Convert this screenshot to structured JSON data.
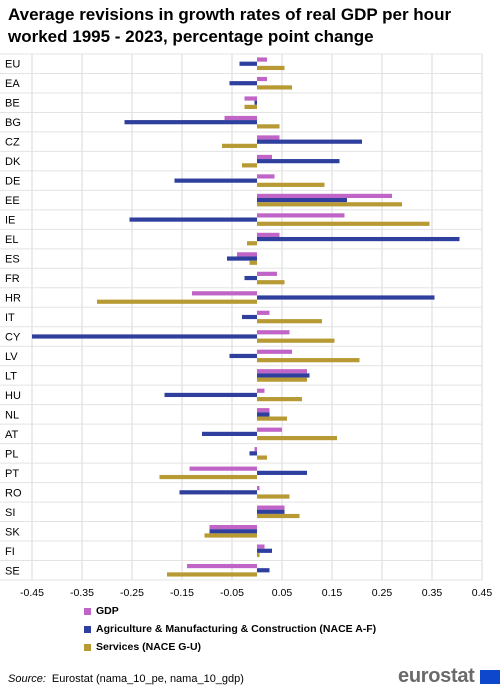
{
  "title": "Average revisions in growth rates of real GDP per hour worked 1995 - 2023, percentage point change",
  "source_label": "Source:",
  "source_text": "Eurostat (nama_10_pe, nama_10_gdp)",
  "logo_text": "eurostat",
  "chart_data": {
    "type": "bar",
    "orientation": "horizontal",
    "categories": [
      "EU",
      "EA",
      "BE",
      "BG",
      "CZ",
      "DK",
      "DE",
      "EE",
      "IE",
      "EL",
      "ES",
      "FR",
      "HR",
      "IT",
      "CY",
      "LV",
      "LT",
      "HU",
      "NL",
      "AT",
      "PL",
      "PT",
      "RO",
      "SI",
      "SK",
      "FI",
      "SE"
    ],
    "series": [
      {
        "name": "GDP",
        "color": "#c164c7",
        "values": [
          0.02,
          0.02,
          -0.025,
          -0.065,
          0.045,
          0.03,
          0.035,
          0.27,
          0.175,
          0.045,
          -0.04,
          0.04,
          -0.13,
          0.025,
          0.065,
          0.07,
          0.1,
          0.015,
          0.025,
          0.05,
          -0.005,
          -0.135,
          0.005,
          0.055,
          -0.095,
          0.015,
          -0.14
        ]
      },
      {
        "name": "Agriculture & Manufacturing & Construction  (NACE A-F)",
        "color": "#2e3f9e",
        "values": [
          -0.035,
          -0.055,
          -0.005,
          -0.265,
          0.21,
          0.165,
          -0.165,
          0.18,
          -0.255,
          0.405,
          -0.06,
          -0.025,
          0.355,
          -0.03,
          -0.45,
          -0.055,
          0.105,
          -0.185,
          0.025,
          -0.11,
          -0.015,
          0.1,
          -0.155,
          0.055,
          -0.095,
          0.03,
          0.025
        ]
      },
      {
        "name": "Services (NACE G-U)",
        "color": "#b79a34",
        "values": [
          0.055,
          0.07,
          -0.025,
          0.045,
          -0.07,
          -0.03,
          0.135,
          0.29,
          0.345,
          -0.02,
          -0.015,
          0.055,
          -0.32,
          0.13,
          0.155,
          0.205,
          0.1,
          0.09,
          0.06,
          0.16,
          0.02,
          -0.195,
          0.065,
          0.085,
          -0.105,
          0.005,
          -0.18
        ]
      }
    ],
    "xlim": [
      -0.45,
      0.45
    ],
    "xticks": [
      "-0.45",
      "-0.35",
      "-0.25",
      "-0.15",
      "-0.05",
      "0.05",
      "0.15",
      "0.25",
      "0.35",
      "0.45"
    ],
    "grid": true,
    "legend_position": "bottom"
  }
}
